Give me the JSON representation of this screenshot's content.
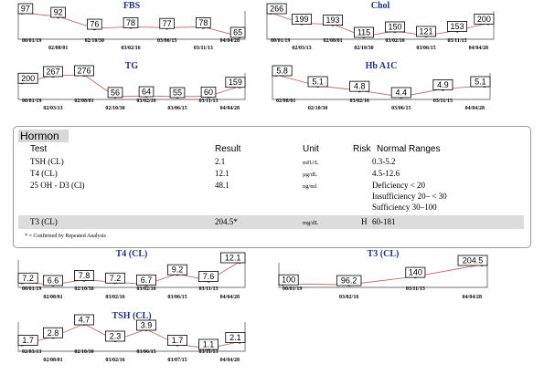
{
  "panel": {
    "title": "Hormon",
    "headers": {
      "test": "Test",
      "result": "Result",
      "unit": "Unit",
      "risk": "Risk",
      "ranges": "Normal Ranges"
    },
    "rows": [
      {
        "test": "TSH (CL)",
        "result": "2.1",
        "unit": "mIU/L",
        "risk": "",
        "ranges": [
          "0.3-5.2"
        ]
      },
      {
        "test": "T4 (CL)",
        "result": "12.1",
        "unit": "µg/dL",
        "risk": "",
        "ranges": [
          "4.5-12.6"
        ]
      },
      {
        "test": "25 OH - D3 (Cl)",
        "result": "48.1",
        "unit": "ng/ml",
        "risk": "",
        "ranges": [
          "Deficiency < 20",
          "Insufficiency 20– < 30",
          "Sufficiency 30–100"
        ]
      },
      {
        "test": "T3 (CL)",
        "result": "204.5*",
        "unit": "mg/dL",
        "risk": "H",
        "ranges": [
          "60-181"
        ]
      }
    ],
    "footnote": "* = Confirmed by Repeated Analysis"
  },
  "chart_data": [
    {
      "id": "fbs",
      "type": "line",
      "title": "FBS",
      "x": [
        "00/01/19",
        "02/08/01",
        "02/10/30",
        "03/02/16",
        "03/06/15",
        "03/11/13",
        "04/04/28"
      ],
      "values": [
        97,
        92,
        76,
        78,
        77,
        78,
        65
      ]
    },
    {
      "id": "chol",
      "type": "line",
      "title": "Chol",
      "x": [
        "00/01/19",
        "02/03/13",
        "02/08/01",
        "02/10/30",
        "03/02/16",
        "03/06/15",
        "03/11/13",
        "04/04/28"
      ],
      "values": [
        266,
        199,
        193,
        115,
        150,
        121,
        153,
        200
      ]
    },
    {
      "id": "tg",
      "type": "line",
      "title": "TG",
      "x": [
        "00/01/19",
        "02/03/13",
        "02/08/01",
        "02/10/30",
        "03/02/16",
        "03/06/15",
        "03/11/13",
        "04/04/28"
      ],
      "values": [
        200,
        267,
        276,
        56,
        64,
        55,
        60,
        159
      ]
    },
    {
      "id": "hba1c",
      "type": "line",
      "title": "Hb A1C",
      "x": [
        "02/08/01",
        "02/10/30",
        "03/02/16",
        "03/06/15",
        "03/11/13",
        "04/04/28"
      ],
      "values": [
        5.8,
        5.1,
        4.8,
        4.4,
        4.9,
        5.1
      ]
    },
    {
      "id": "t4",
      "type": "line",
      "title": "T4 (CL)",
      "x": [
        "00/01/19",
        "02/08/01",
        "02/10/30",
        "03/02/16",
        "03/02/16",
        "03/06/15",
        "03/11/13",
        "04/04/28"
      ],
      "values": [
        7.2,
        6.6,
        7.8,
        7.2,
        6.7,
        9.2,
        7.6,
        12.1
      ]
    },
    {
      "id": "t3",
      "type": "line",
      "title": "T3 (CL)",
      "x": [
        "00/01/19",
        "03/02/16",
        "03/11/13",
        "04/04/28"
      ],
      "values": [
        100,
        96.2,
        140,
        204.5
      ]
    },
    {
      "id": "tsh",
      "type": "line",
      "title": "TSH (CL)",
      "x": [
        "02/03/13",
        "02/08/01",
        "02/10/30",
        "03/02/16",
        "03/06/15",
        "03/07/15",
        "03/11/13",
        "04/04/28"
      ],
      "values": [
        1.7,
        2.8,
        4.7,
        2.3,
        3.9,
        1.7,
        1.1,
        2.1
      ]
    }
  ]
}
